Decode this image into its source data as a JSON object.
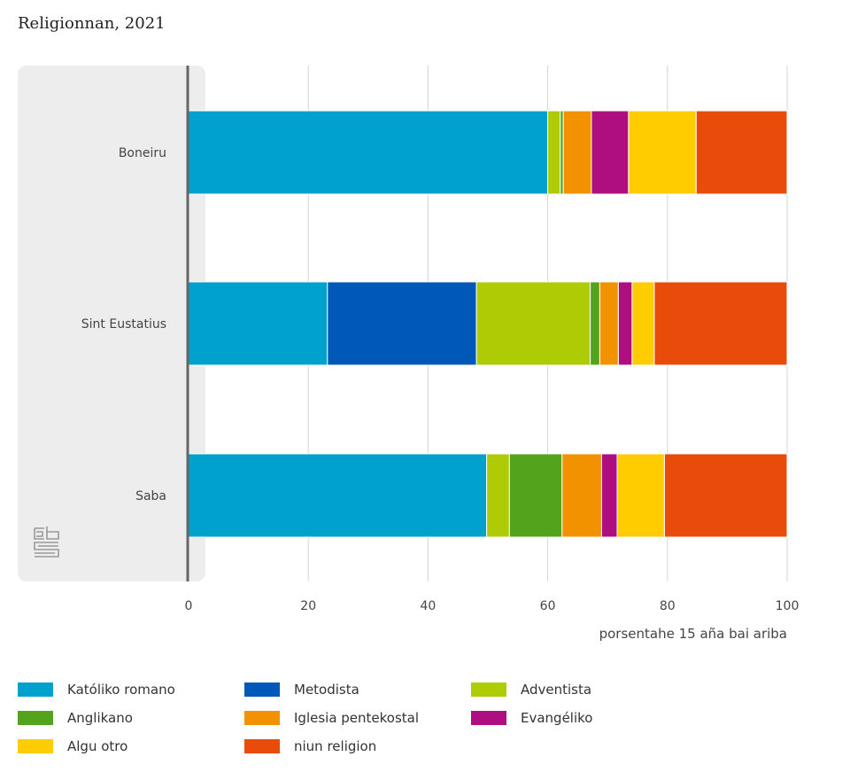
{
  "chart_data": {
    "type": "bar",
    "orientation": "horizontal",
    "stacked": true,
    "title": "Religionnan, 2021",
    "xlabel": "porsentahe 15 aña bai ariba",
    "ylabel": "",
    "xlim": [
      0,
      100
    ],
    "xticks": [
      "0",
      "20",
      "40",
      "60",
      "80",
      "100"
    ],
    "categories": [
      "Boneiru",
      "Sint Eustatius",
      "Saba"
    ],
    "series": [
      {
        "name": "Katóliko romano",
        "color": "#00a1cd",
        "values": [
          60.0,
          23.2,
          49.8
        ]
      },
      {
        "name": "Metodista",
        "color": "#0058b8",
        "values": [
          0.0,
          24.9,
          0.0
        ]
      },
      {
        "name": "Adventista",
        "color": "#afcb05",
        "values": [
          2.1,
          19.0,
          3.8
        ]
      },
      {
        "name": "Anglikano",
        "color": "#53a31d",
        "values": [
          0.5,
          1.6,
          8.8
        ]
      },
      {
        "name": "Iglesia pentekostal",
        "color": "#f39200",
        "values": [
          4.7,
          3.1,
          6.6
        ]
      },
      {
        "name": "Evangéliko",
        "color": "#af0e80",
        "values": [
          6.2,
          2.3,
          2.6
        ]
      },
      {
        "name": "Algu otro",
        "color": "#ffcc00",
        "values": [
          11.3,
          3.7,
          7.9
        ]
      },
      {
        "name": "niun religion",
        "color": "#e94c0a",
        "values": [
          15.2,
          22.2,
          20.5
        ]
      }
    ],
    "legend_position": "bottom",
    "grid": true
  }
}
